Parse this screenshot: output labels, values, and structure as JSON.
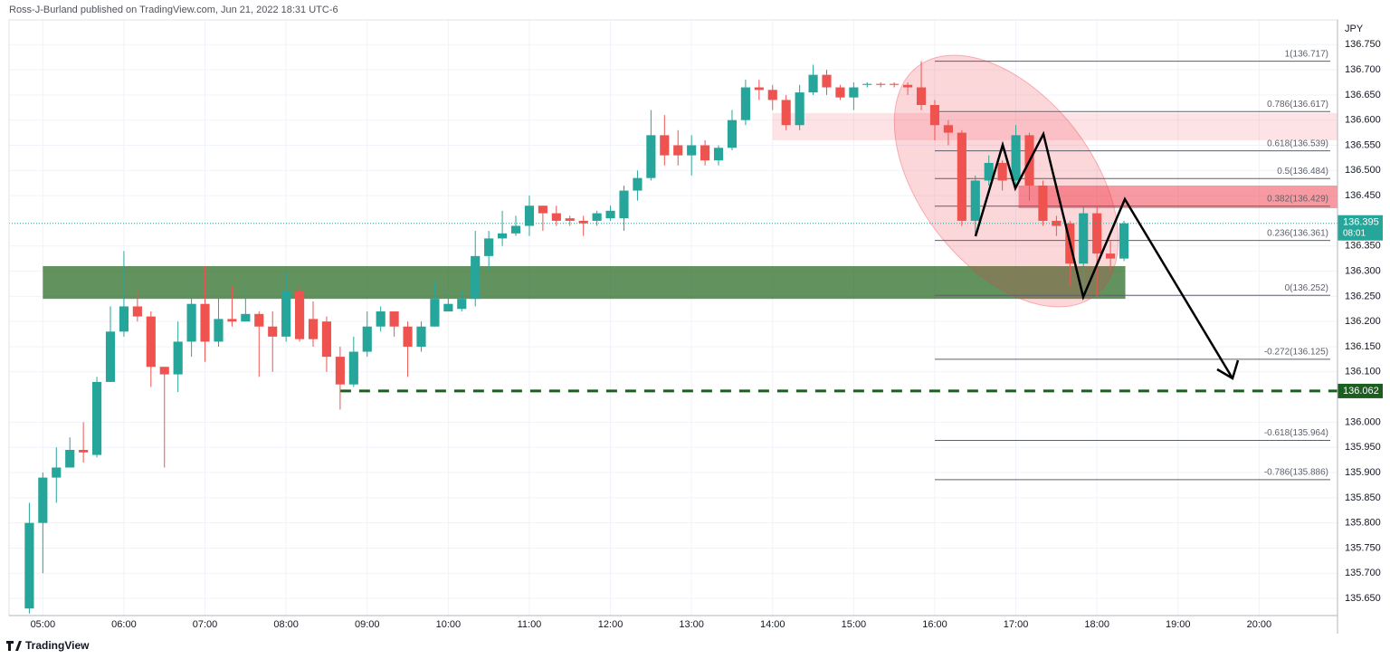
{
  "chart_data": {
    "type": "candlestick",
    "header": "Ross-J-Burland published on TradingView.com, Jun 21, 2022 18:31 UTC-6",
    "unit": "JPY",
    "footer": "TradingView",
    "countdown": "08:01",
    "up_color": "#26a69a",
    "down_color": "#ef5350",
    "grid": true,
    "xlim": [
      275,
      1258
    ],
    "ylim": [
      135.616,
      136.799
    ],
    "xticks": [
      {
        "value": 300,
        "label": "05:00"
      },
      {
        "value": 360,
        "label": "06:00"
      },
      {
        "value": 420,
        "label": "07:00"
      },
      {
        "value": 480,
        "label": "08:00"
      },
      {
        "value": 540,
        "label": "09:00"
      },
      {
        "value": 600,
        "label": "10:00"
      },
      {
        "value": 660,
        "label": "11:00"
      },
      {
        "value": 720,
        "label": "12:00"
      },
      {
        "value": 780,
        "label": "13:00"
      },
      {
        "value": 840,
        "label": "14:00"
      },
      {
        "value": 900,
        "label": "15:00"
      },
      {
        "value": 960,
        "label": "16:00"
      },
      {
        "value": 1020,
        "label": "17:00"
      },
      {
        "value": 1080,
        "label": "18:00"
      },
      {
        "value": 1140,
        "label": "19:00"
      },
      {
        "value": 1200,
        "label": "20:00"
      }
    ],
    "yticks": [
      {
        "value": 136.75,
        "label": "136.750"
      },
      {
        "value": 136.7,
        "label": "136.700"
      },
      {
        "value": 136.65,
        "label": "136.650"
      },
      {
        "value": 136.6,
        "label": "136.600"
      },
      {
        "value": 136.55,
        "label": "136.550"
      },
      {
        "value": 136.5,
        "label": "136.500"
      },
      {
        "value": 136.45,
        "label": "136.450"
      },
      {
        "value": 136.35,
        "label": "136.350"
      },
      {
        "value": 136.3,
        "label": "136.300"
      },
      {
        "value": 136.25,
        "label": "136.250"
      },
      {
        "value": 136.2,
        "label": "136.200"
      },
      {
        "value": 136.15,
        "label": "136.150"
      },
      {
        "value": 136.1,
        "label": "136.100"
      },
      {
        "value": 136.0,
        "label": "136.000"
      },
      {
        "value": 135.95,
        "label": "135.950"
      },
      {
        "value": 135.9,
        "label": "135.900"
      },
      {
        "value": 135.85,
        "label": "135.850"
      },
      {
        "value": 135.8,
        "label": "135.800"
      },
      {
        "value": 135.75,
        "label": "135.750"
      },
      {
        "value": 135.7,
        "label": "135.700"
      },
      {
        "value": 135.65,
        "label": "135.650"
      }
    ],
    "x": [
      290,
      300,
      310,
      320,
      330,
      340,
      350,
      360,
      370,
      380,
      390,
      400,
      410,
      420,
      430,
      440,
      450,
      460,
      470,
      480,
      490,
      500,
      510,
      520,
      530,
      540,
      550,
      560,
      570,
      580,
      590,
      600,
      610,
      620,
      630,
      640,
      650,
      660,
      670,
      680,
      690,
      700,
      710,
      720,
      730,
      740,
      750,
      760,
      770,
      780,
      790,
      800,
      810,
      820,
      830,
      840,
      850,
      860,
      870,
      880,
      890,
      900,
      910,
      920,
      930,
      940,
      950,
      960,
      970,
      980,
      990,
      1000,
      1010,
      1020,
      1030,
      1040,
      1050,
      1060,
      1070,
      1080,
      1090,
      1100
    ],
    "open": [
      135.63,
      135.8,
      135.89,
      135.91,
      135.945,
      135.935,
      136.08,
      136.18,
      136.23,
      136.21,
      136.11,
      136.095,
      136.16,
      136.235,
      136.16,
      136.205,
      136.2,
      136.215,
      136.19,
      136.17,
      136.26,
      136.205,
      136.2,
      136.13,
      136.075,
      136.14,
      136.19,
      136.22,
      136.19,
      136.15,
      136.19,
      136.22,
      136.225,
      136.245,
      136.33,
      136.365,
      136.375,
      136.39,
      136.43,
      136.415,
      136.405,
      136.4,
      136.4,
      136.405,
      136.405,
      136.46,
      136.485,
      136.57,
      136.55,
      136.53,
      136.55,
      136.52,
      136.545,
      136.6,
      136.665,
      136.66,
      136.64,
      136.59,
      136.655,
      136.69,
      136.665,
      136.645,
      136.67,
      136.672,
      136.672,
      136.67,
      136.665,
      136.63,
      136.59,
      136.575,
      136.4,
      136.48,
      136.515,
      136.48,
      136.57,
      136.47,
      136.4,
      136.395,
      136.315,
      136.415,
      136.335,
      136.325
    ],
    "high": [
      135.84,
      135.9,
      135.95,
      135.97,
      136.0,
      136.09,
      136.23,
      136.34,
      136.26,
      136.22,
      136.11,
      136.2,
      136.27,
      136.31,
      136.26,
      136.27,
      136.27,
      136.22,
      136.22,
      136.3,
      136.27,
      136.24,
      136.21,
      136.15,
      136.17,
      136.22,
      136.23,
      136.22,
      136.2,
      136.2,
      136.28,
      136.26,
      136.26,
      136.38,
      136.38,
      136.42,
      136.41,
      136.45,
      136.43,
      136.43,
      136.41,
      136.41,
      136.42,
      136.43,
      136.47,
      136.5,
      136.62,
      136.61,
      136.58,
      136.57,
      136.56,
      136.55,
      136.62,
      136.68,
      136.68,
      136.67,
      136.65,
      136.67,
      136.71,
      136.7,
      136.67,
      136.675,
      136.675,
      136.675,
      136.675,
      136.675,
      136.717,
      136.64,
      136.6,
      136.58,
      136.49,
      136.53,
      136.52,
      136.59,
      136.575,
      136.48,
      136.41,
      136.4,
      136.43,
      136.43,
      136.36,
      136.4
    ],
    "low": [
      135.62,
      135.7,
      135.84,
      135.92,
      135.92,
      135.93,
      136.08,
      136.17,
      136.2,
      136.07,
      135.91,
      136.06,
      136.13,
      136.12,
      136.15,
      136.19,
      136.2,
      136.09,
      136.1,
      136.16,
      136.16,
      136.15,
      136.1,
      136.025,
      136.07,
      136.13,
      136.18,
      136.17,
      136.09,
      136.14,
      136.19,
      136.22,
      136.22,
      136.23,
      136.3,
      136.35,
      136.37,
      136.37,
      136.38,
      136.39,
      136.39,
      136.37,
      136.39,
      136.4,
      136.38,
      136.44,
      136.48,
      136.51,
      136.51,
      136.49,
      136.51,
      136.51,
      136.54,
      136.59,
      136.64,
      136.62,
      136.58,
      136.58,
      136.65,
      136.65,
      136.64,
      136.62,
      136.665,
      136.665,
      136.665,
      136.65,
      136.62,
      136.56,
      136.55,
      136.39,
      136.37,
      136.47,
      136.46,
      136.47,
      136.44,
      136.39,
      136.37,
      136.27,
      136.25,
      136.25,
      136.3,
      136.32
    ],
    "close": [
      135.8,
      135.89,
      135.91,
      135.945,
      135.94,
      136.08,
      136.18,
      136.23,
      136.21,
      136.11,
      136.095,
      136.16,
      136.235,
      136.16,
      136.205,
      136.2,
      136.215,
      136.19,
      136.17,
      136.26,
      136.165,
      136.165,
      136.13,
      136.075,
      136.14,
      136.19,
      136.22,
      136.19,
      136.15,
      136.19,
      136.245,
      136.235,
      136.245,
      136.33,
      136.365,
      136.375,
      136.39,
      136.43,
      136.415,
      136.4,
      136.4,
      136.395,
      136.415,
      136.42,
      136.46,
      136.485,
      136.57,
      136.53,
      136.53,
      136.55,
      136.52,
      136.545,
      136.6,
      136.665,
      136.66,
      136.64,
      136.59,
      136.655,
      136.69,
      136.665,
      136.645,
      136.665,
      136.672,
      136.67,
      136.67,
      136.665,
      136.63,
      136.59,
      136.575,
      136.4,
      136.48,
      136.515,
      136.48,
      136.57,
      136.47,
      136.4,
      136.39,
      136.315,
      136.415,
      136.335,
      136.325,
      136.395
    ],
    "fib": {
      "start": 960,
      "levels": [
        {
          "value": 136.717,
          "label": "1(136.717)"
        },
        {
          "value": 136.617,
          "label": "0.786(136.617)"
        },
        {
          "value": 136.539,
          "label": "0.618(136.539)"
        },
        {
          "value": 136.484,
          "label": "0.5(136.484)"
        },
        {
          "value": 136.429,
          "label": "0.382(136.429)"
        },
        {
          "value": 136.361,
          "label": "0.236(136.361)"
        },
        {
          "value": 136.252,
          "label": "0(136.252)"
        },
        {
          "value": 136.125,
          "label": "-0.272(136.125)"
        },
        {
          "value": 135.964,
          "label": "-0.618(135.964)"
        },
        {
          "value": 135.886,
          "label": "-0.786(135.886)"
        }
      ]
    },
    "zones": [
      {
        "from": 300,
        "to": 1101,
        "low": 136.245,
        "high": 136.31,
        "color": "rgba(46,110,40,0.75)"
      },
      {
        "from": 840,
        "to": 1258,
        "low": 136.56,
        "high": 136.614,
        "color": "rgba(242,54,69,0.14)"
      },
      {
        "from": 1022,
        "to": 1258,
        "low": 136.425,
        "high": 136.47,
        "color": "rgba(242,54,69,0.5)"
      }
    ],
    "hline": {
      "value": 136.062,
      "start": 520,
      "color": "#1b5e20"
    }
  }
}
